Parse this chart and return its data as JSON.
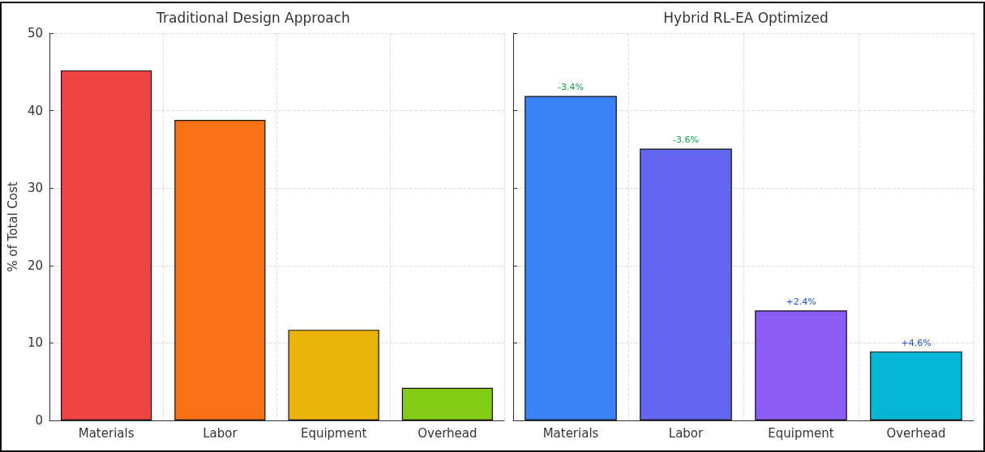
{
  "chart_data": [
    {
      "type": "bar",
      "title": "Traditional Design Approach",
      "ylabel": "% of Total Cost",
      "categories": [
        "Materials",
        "Labor",
        "Equipment",
        "Overhead"
      ],
      "values": [
        45.2,
        38.8,
        11.7,
        4.2
      ],
      "colors": [
        "#ef4444",
        "#f97316",
        "#eab308",
        "#84cc16"
      ],
      "ylim": [
        0,
        50
      ],
      "yticks": [
        0,
        10,
        20,
        30,
        40,
        50
      ],
      "grid": true
    },
    {
      "type": "bar",
      "title": "Hybrid RL-EA Optimized",
      "categories": [
        "Materials",
        "Labor",
        "Equipment",
        "Overhead"
      ],
      "values": [
        41.9,
        35.1,
        14.2,
        8.9
      ],
      "colors": [
        "#3b82f6",
        "#6366f1",
        "#8b5cf6",
        "#06b6d4"
      ],
      "annotations": [
        {
          "text": "-3.4%",
          "x": "Materials",
          "y": 41.9
        },
        {
          "text": "-3.6%",
          "x": "Labor",
          "y": 35.1
        },
        {
          "text": "+2.4%",
          "x": "Equipment",
          "y": 14.2
        },
        {
          "text": "+4.6%",
          "x": "Overhead",
          "y": 8.9
        }
      ],
      "ylim": [
        0,
        50
      ],
      "yticks": [
        0,
        10,
        20,
        30,
        40,
        50
      ],
      "grid": true,
      "tick_labels": "x"
    }
  ]
}
